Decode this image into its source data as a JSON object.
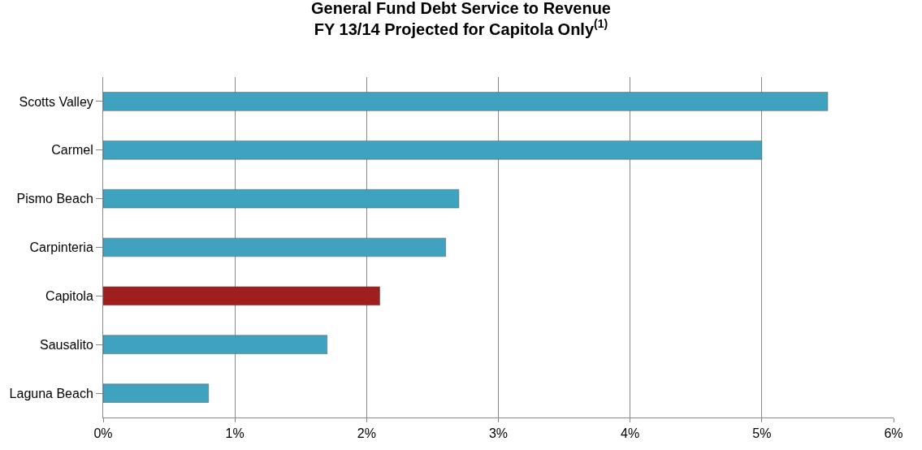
{
  "chart_data": {
    "type": "bar",
    "orientation": "horizontal",
    "title": "General Fund Debt Service to Revenue",
    "subtitle": "FY 13/14 Projected for Capitola Only$^{(1)}$",
    "categories": [
      "Scotts Valley",
      "Carmel",
      "Pismo Beach",
      "Carpinteria",
      "Capitola",
      "Sausalito",
      "Laguna Beach"
    ],
    "values": [
      5.5,
      5.0,
      2.7,
      2.6,
      2.1,
      1.7,
      0.8
    ],
    "colors": [
      "#3fa3bf",
      "#3fa3bf",
      "#3fa3bf",
      "#3fa3bf",
      "#a01e1e",
      "#3fa3bf",
      "#3fa3bf"
    ],
    "xlim": [
      0,
      6
    ],
    "xticks": [
      {
        "value": 0,
        "label": "0%"
      },
      {
        "value": 1,
        "label": "1%"
      },
      {
        "value": 2,
        "label": "2%"
      },
      {
        "value": 3,
        "label": "3%"
      },
      {
        "value": 4,
        "label": "4%"
      },
      {
        "value": 5,
        "label": "5%"
      },
      {
        "value": 6,
        "label": "6%"
      }
    ],
    "grid": "x"
  }
}
